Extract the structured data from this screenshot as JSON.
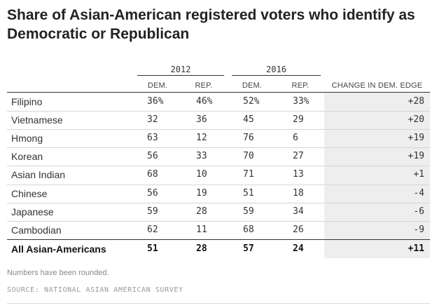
{
  "title": "Share of Asian-American registered voters who identify as Democratic or Republican",
  "chart_data": {
    "type": "table",
    "title": "Share of Asian-American registered voters who identify as Democratic or Republican",
    "groups": [
      "2012",
      "2016"
    ],
    "columns": [
      "DEM.",
      "REP.",
      "DEM.",
      "REP.",
      "CHANGE IN DEM. EDGE"
    ],
    "rows": [
      {
        "name": "Filipino",
        "dem2012": "36%",
        "rep2012": "46%",
        "dem2016": "52%",
        "rep2016": "33%",
        "change": "+28"
      },
      {
        "name": "Vietnamese",
        "dem2012": "32",
        "rep2012": "36",
        "dem2016": "45",
        "rep2016": "29",
        "change": "+20"
      },
      {
        "name": "Hmong",
        "dem2012": "63",
        "rep2012": "12",
        "dem2016": "76",
        "rep2016": "6",
        "change": "+19"
      },
      {
        "name": "Korean",
        "dem2012": "56",
        "rep2012": "33",
        "dem2016": "70",
        "rep2016": "27",
        "change": "+19"
      },
      {
        "name": "Asian Indian",
        "dem2012": "68",
        "rep2012": "10",
        "dem2016": "71",
        "rep2016": "13",
        "change": "+1"
      },
      {
        "name": "Chinese",
        "dem2012": "56",
        "rep2012": "19",
        "dem2016": "51",
        "rep2016": "18",
        "change": "-4"
      },
      {
        "name": "Japanese",
        "dem2012": "59",
        "rep2012": "28",
        "dem2016": "59",
        "rep2016": "34",
        "change": "-6"
      },
      {
        "name": "Cambodian",
        "dem2012": "62",
        "rep2012": "11",
        "dem2016": "68",
        "rep2016": "26",
        "change": "-9"
      }
    ],
    "total": {
      "name": "All Asian-Americans",
      "dem2012": "51",
      "rep2012": "28",
      "dem2016": "57",
      "rep2016": "24",
      "change": "+11"
    }
  },
  "note": "Numbers have been rounded.",
  "source": "SOURCE: NATIONAL ASIAN AMERICAN SURVEY"
}
